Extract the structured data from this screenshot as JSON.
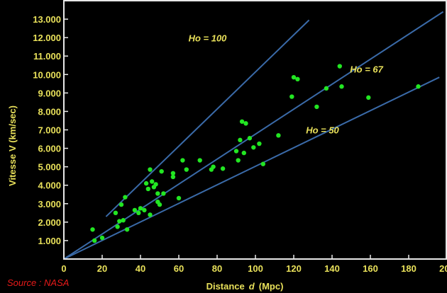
{
  "chart_data": {
    "type": "scatter",
    "xlabel_prefix": "Distance",
    "xlabel_var": "d",
    "xlabel_unit": "(Mpc)",
    "ylabel": "Vitesse V  (km/sec)",
    "xlim": [
      0,
      200
    ],
    "ylim": [
      0,
      14000
    ],
    "x_ticks": [
      0,
      20,
      40,
      60,
      80,
      100,
      120,
      140,
      160,
      180,
      200
    ],
    "x_tick_labels": [
      "0",
      "20",
      "40",
      "60",
      "80",
      "100",
      "120",
      "140",
      "160",
      "180",
      "200"
    ],
    "y_ticks": [
      1000,
      2000,
      3000,
      4000,
      5000,
      6000,
      7000,
      8000,
      9000,
      10000,
      11000,
      12000,
      13000
    ],
    "y_tick_labels": [
      "1.000",
      "2.000",
      "3.000",
      "4.000",
      "5.000",
      "6.000",
      "7.000",
      "8.000",
      "9.000",
      "10.000",
      "11.000",
      "12.000",
      "13.000"
    ],
    "grid": false,
    "source": "Source : NASA",
    "colors": {
      "background": "#000000",
      "frame": "#e8e8e8",
      "points": "#22e622",
      "lines": "#3a6aa8",
      "text": "#e8e05a",
      "source": "#e81a1a"
    },
    "fit_lines": [
      {
        "label": "Ho = 100",
        "x": [
          22,
          128
        ],
        "y": [
          2300,
          12950
        ],
        "label_x": 75,
        "label_y": 11800
      },
      {
        "label": "Ho = 67",
        "x": [
          0,
          198
        ],
        "y": [
          0,
          13400
        ],
        "label_x": 158,
        "label_y": 10100
      },
      {
        "label": "Ho = 50",
        "x": [
          0,
          196
        ],
        "y": [
          0,
          9850
        ],
        "label_x": 135,
        "label_y": 6800
      }
    ],
    "points": [
      {
        "x": 15,
        "y": 1600
      },
      {
        "x": 16,
        "y": 1000
      },
      {
        "x": 20,
        "y": 1150
      },
      {
        "x": 27,
        "y": 2500
      },
      {
        "x": 28,
        "y": 1750
      },
      {
        "x": 29,
        "y": 2050
      },
      {
        "x": 30,
        "y": 2950
      },
      {
        "x": 31,
        "y": 2100
      },
      {
        "x": 32,
        "y": 3350
      },
      {
        "x": 33,
        "y": 1600
      },
      {
        "x": 37,
        "y": 2650
      },
      {
        "x": 39,
        "y": 2500
      },
      {
        "x": 40,
        "y": 2750
      },
      {
        "x": 42,
        "y": 2650
      },
      {
        "x": 43,
        "y": 4100
      },
      {
        "x": 44,
        "y": 3800
      },
      {
        "x": 45,
        "y": 2400
      },
      {
        "x": 45,
        "y": 4850
      },
      {
        "x": 46,
        "y": 4200
      },
      {
        "x": 47,
        "y": 3900
      },
      {
        "x": 48,
        "y": 4050
      },
      {
        "x": 49,
        "y": 3100
      },
      {
        "x": 49,
        "y": 3550
      },
      {
        "x": 50,
        "y": 2950
      },
      {
        "x": 51,
        "y": 4750
      },
      {
        "x": 52,
        "y": 3550
      },
      {
        "x": 57,
        "y": 4450
      },
      {
        "x": 57,
        "y": 4650
      },
      {
        "x": 60,
        "y": 3300
      },
      {
        "x": 62,
        "y": 5350
      },
      {
        "x": 64,
        "y": 4850
      },
      {
        "x": 71,
        "y": 5350
      },
      {
        "x": 77,
        "y": 4850
      },
      {
        "x": 78,
        "y": 5000
      },
      {
        "x": 83,
        "y": 4900
      },
      {
        "x": 90,
        "y": 5850
      },
      {
        "x": 91,
        "y": 5350
      },
      {
        "x": 92,
        "y": 6450
      },
      {
        "x": 93,
        "y": 7450
      },
      {
        "x": 94,
        "y": 5750
      },
      {
        "x": 95,
        "y": 7350
      },
      {
        "x": 97,
        "y": 6550
      },
      {
        "x": 99,
        "y": 6050
      },
      {
        "x": 102,
        "y": 6250
      },
      {
        "x": 104,
        "y": 5150
      },
      {
        "x": 112,
        "y": 6700
      },
      {
        "x": 119,
        "y": 8800
      },
      {
        "x": 120,
        "y": 9850
      },
      {
        "x": 122,
        "y": 9750
      },
      {
        "x": 132,
        "y": 8250
      },
      {
        "x": 137,
        "y": 9250
      },
      {
        "x": 144,
        "y": 10450
      },
      {
        "x": 145,
        "y": 9350
      },
      {
        "x": 159,
        "y": 8750
      },
      {
        "x": 185,
        "y": 9350
      }
    ]
  }
}
